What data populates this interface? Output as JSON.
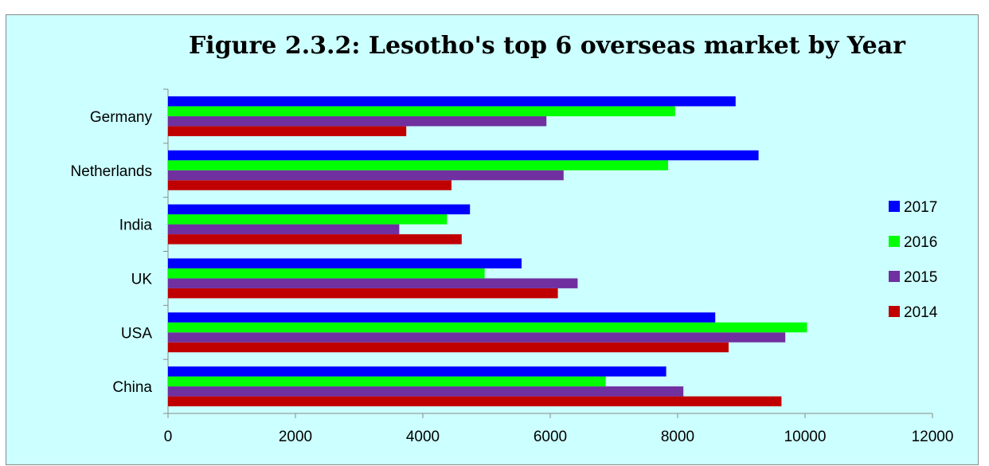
{
  "chart_data": {
    "type": "bar",
    "orientation": "horizontal",
    "title": "Figure 2.3.2: Lesotho's  top 6 overseas market by Year",
    "categories": [
      "China",
      "USA",
      "UK",
      "India",
      "Netherlands",
      "Germany"
    ],
    "series": [
      {
        "name": "2014",
        "color": "#c00000",
        "values": [
          9630,
          8800,
          6120,
          4610,
          4450,
          3740
        ]
      },
      {
        "name": "2015",
        "color": "#7030a0",
        "values": [
          8090,
          9690,
          6430,
          3630,
          6210,
          5940
        ]
      },
      {
        "name": "2016",
        "color": "#00ff00",
        "values": [
          6870,
          10030,
          4970,
          4380,
          7850,
          7960
        ]
      },
      {
        "name": "2017",
        "color": "#0000ff",
        "values": [
          7820,
          8590,
          5550,
          4740,
          9270,
          8910
        ]
      }
    ],
    "xlim": [
      0,
      12000
    ],
    "x_ticks": [
      "0",
      "2000",
      "4000",
      "6000",
      "8000",
      "10000",
      "12000"
    ],
    "legend_order": [
      "2017",
      "2016",
      "2015",
      "2014"
    ],
    "legend_position": "right",
    "grid": false
  }
}
